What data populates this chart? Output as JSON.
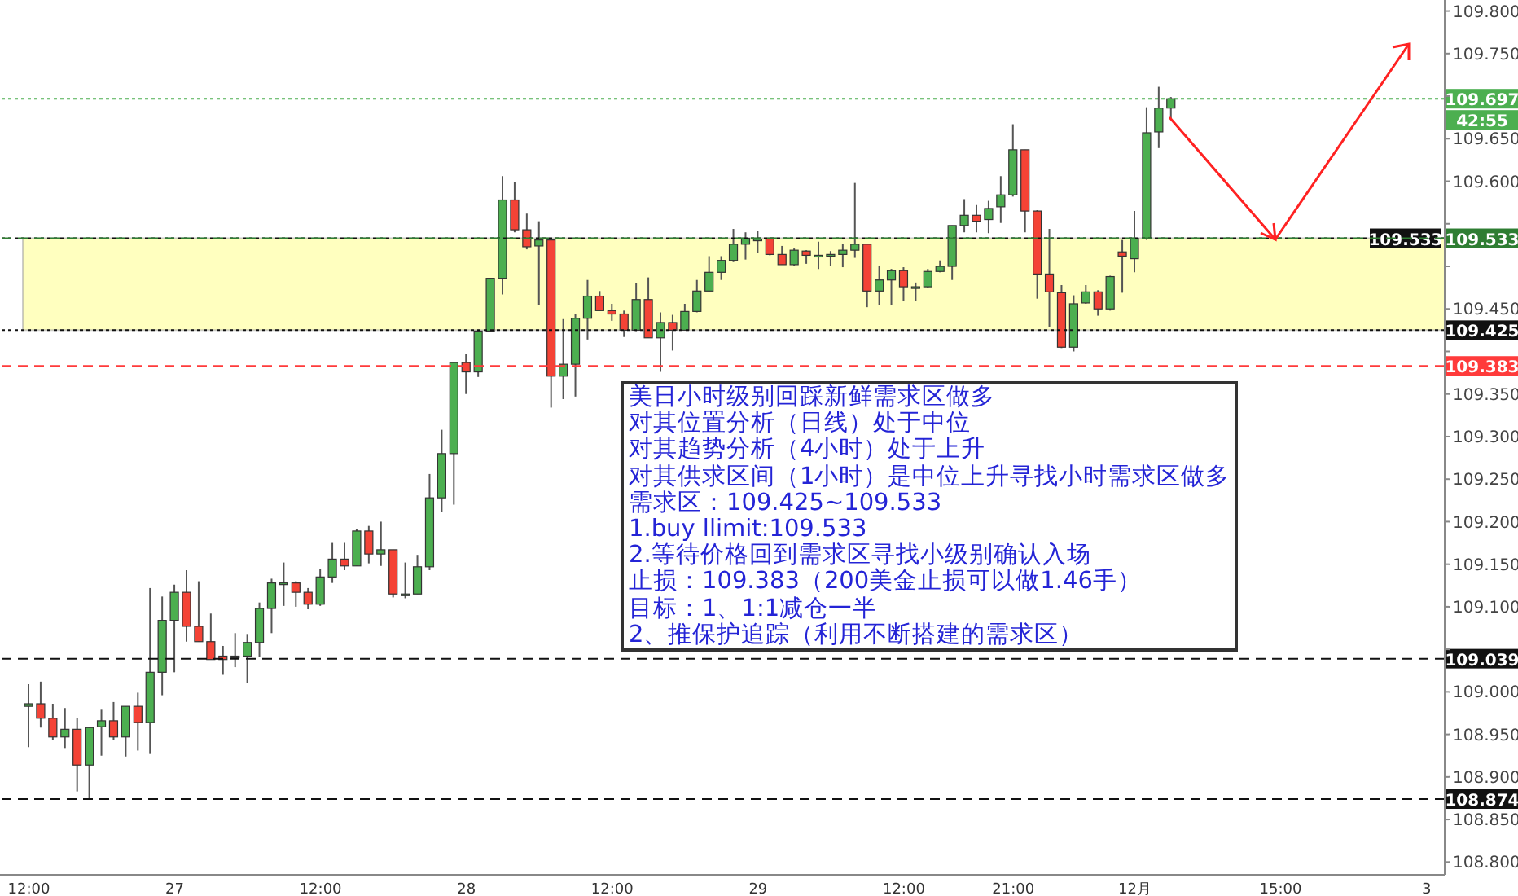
{
  "chart_data": {
    "type": "candlestick",
    "categories": [
      "12:00",
      null,
      null,
      null,
      null,
      null,
      null,
      null,
      null,
      null,
      null,
      null,
      "27",
      null,
      null,
      null,
      null,
      null,
      null,
      null,
      null,
      null,
      null,
      null,
      "12:00",
      null,
      null,
      null,
      null,
      null,
      null,
      null,
      null,
      null,
      null,
      null,
      "28",
      null,
      null,
      null,
      null,
      null,
      null,
      null,
      null,
      null,
      null,
      null,
      "12:00",
      null,
      null,
      null,
      null,
      null,
      null,
      null,
      null,
      null,
      null,
      null,
      "29",
      null,
      null,
      null,
      null,
      null,
      null,
      null,
      null,
      null,
      null,
      null,
      "12:00",
      null,
      null,
      null,
      null,
      null,
      null,
      null,
      null,
      "21:00",
      null,
      null,
      null,
      null,
      null,
      null,
      null,
      null,
      null,
      "12月",
      null,
      null,
      null,
      null,
      null,
      null,
      null,
      null,
      null,
      null,
      null,
      "15:00",
      null,
      null,
      null,
      null,
      null,
      null,
      null,
      null,
      null,
      null,
      null,
      "3",
      null
    ],
    "ohlc": [
      [
        108.983,
        109.009,
        108.935,
        108.986
      ],
      [
        108.986,
        109.012,
        108.958,
        108.969
      ],
      [
        108.969,
        108.986,
        108.943,
        108.947
      ],
      [
        108.947,
        108.981,
        108.934,
        108.956
      ],
      [
        108.956,
        108.969,
        108.883,
        108.914
      ],
      [
        108.914,
        108.958,
        108.875,
        108.958
      ],
      [
        108.959,
        108.979,
        108.925,
        108.966
      ],
      [
        108.966,
        108.988,
        108.943,
        108.947
      ],
      [
        108.947,
        108.983,
        108.924,
        108.983
      ],
      [
        108.983,
        108.999,
        108.931,
        108.964
      ],
      [
        108.964,
        109.122,
        108.927,
        109.023
      ],
      [
        109.023,
        109.112,
        108.996,
        109.084
      ],
      [
        109.084,
        109.126,
        109.023,
        109.117
      ],
      [
        109.117,
        109.143,
        109.059,
        109.077
      ],
      [
        109.077,
        109.13,
        109.059,
        109.059
      ],
      [
        109.059,
        109.092,
        109.038,
        109.038
      ],
      [
        109.042,
        109.054,
        109.02,
        109.038
      ],
      [
        109.042,
        109.069,
        109.029,
        109.042
      ],
      [
        109.042,
        109.068,
        109.01,
        109.058
      ],
      [
        109.058,
        109.105,
        109.041,
        109.098
      ],
      [
        109.098,
        109.133,
        109.069,
        109.128
      ],
      [
        109.128,
        109.152,
        109.101,
        109.128
      ],
      [
        109.128,
        109.13,
        109.1,
        109.117
      ],
      [
        109.117,
        109.122,
        109.097,
        109.103
      ],
      [
        109.103,
        109.144,
        109.101,
        109.135
      ],
      [
        109.135,
        109.175,
        109.128,
        109.156
      ],
      [
        109.156,
        109.175,
        109.143,
        109.148
      ],
      [
        109.148,
        109.191,
        109.148,
        109.189
      ],
      [
        109.189,
        109.195,
        109.151,
        109.162
      ],
      [
        109.162,
        109.2,
        109.148,
        109.167
      ],
      [
        109.167,
        109.167,
        109.111,
        109.115
      ],
      [
        109.115,
        109.152,
        109.11,
        109.115
      ],
      [
        109.115,
        109.161,
        109.115,
        109.147
      ],
      [
        109.147,
        109.256,
        109.143,
        109.228
      ],
      [
        109.228,
        109.308,
        109.211,
        109.28
      ],
      [
        109.28,
        109.387,
        109.22,
        109.387
      ],
      [
        109.387,
        109.397,
        109.35,
        109.376
      ],
      [
        109.376,
        109.424,
        109.37,
        109.424
      ],
      [
        109.424,
        109.486,
        109.424,
        109.486
      ],
      [
        109.486,
        109.606,
        109.467,
        109.578
      ],
      [
        109.578,
        109.599,
        109.54,
        109.543
      ],
      [
        109.543,
        109.562,
        109.52,
        109.523
      ],
      [
        109.524,
        109.553,
        109.455,
        109.531
      ],
      [
        109.531,
        109.531,
        109.334,
        109.371
      ],
      [
        109.371,
        109.438,
        109.344,
        109.385
      ],
      [
        109.385,
        109.444,
        109.347,
        109.439
      ],
      [
        109.439,
        109.484,
        109.414,
        109.465
      ],
      [
        109.465,
        109.471,
        109.448,
        109.448
      ],
      [
        109.448,
        109.456,
        109.436,
        109.444
      ],
      [
        109.444,
        109.448,
        109.417,
        109.425
      ],
      [
        109.425,
        109.48,
        109.424,
        109.461
      ],
      [
        109.461,
        109.487,
        109.416,
        109.416
      ],
      [
        109.416,
        109.446,
        109.376,
        109.434
      ],
      [
        109.434,
        109.443,
        109.401,
        109.425
      ],
      [
        109.425,
        109.456,
        109.425,
        109.447
      ],
      [
        109.447,
        109.484,
        109.446,
        109.471
      ],
      [
        109.471,
        109.512,
        109.471,
        109.493
      ],
      [
        109.493,
        109.512,
        109.484,
        109.507
      ],
      [
        109.507,
        109.544,
        109.505,
        109.526
      ],
      [
        109.526,
        109.54,
        109.508,
        109.533
      ],
      [
        109.532,
        109.542,
        109.516,
        109.532
      ],
      [
        109.533,
        109.533,
        109.513,
        109.514
      ],
      [
        109.514,
        109.524,
        109.502,
        109.502
      ],
      [
        109.502,
        109.521,
        109.501,
        109.519
      ],
      [
        109.518,
        109.519,
        109.503,
        109.513
      ],
      [
        109.513,
        109.529,
        109.497,
        109.513
      ],
      [
        109.512,
        109.518,
        109.5,
        109.514
      ],
      [
        109.514,
        109.526,
        109.499,
        109.519
      ],
      [
        109.519,
        109.598,
        109.51,
        109.526
      ],
      [
        109.526,
        109.526,
        109.452,
        109.471
      ],
      [
        109.471,
        109.501,
        109.455,
        109.484
      ],
      [
        109.484,
        109.497,
        109.455,
        109.495
      ],
      [
        109.495,
        109.499,
        109.459,
        109.476
      ],
      [
        109.476,
        109.481,
        109.459,
        109.476
      ],
      [
        109.476,
        109.497,
        109.475,
        109.494
      ],
      [
        109.494,
        109.507,
        109.493,
        109.5
      ],
      [
        109.5,
        109.548,
        109.484,
        109.548
      ],
      [
        109.548,
        109.579,
        109.54,
        109.56
      ],
      [
        109.56,
        109.572,
        109.54,
        109.553
      ],
      [
        109.555,
        109.577,
        109.539,
        109.568
      ],
      [
        109.57,
        109.606,
        109.551,
        109.584
      ],
      [
        109.584,
        109.667,
        109.582,
        109.637
      ],
      [
        109.637,
        109.637,
        109.54,
        109.565
      ],
      [
        109.565,
        109.566,
        109.462,
        109.491
      ],
      [
        109.491,
        109.544,
        109.429,
        109.47
      ],
      [
        109.469,
        109.478,
        109.404,
        109.405
      ],
      [
        109.405,
        109.466,
        109.4,
        109.456
      ],
      [
        109.457,
        109.478,
        109.456,
        109.47
      ],
      [
        109.47,
        109.472,
        109.442,
        109.45
      ],
      [
        109.45,
        109.489,
        109.448,
        109.488
      ],
      [
        109.517,
        109.531,
        109.469,
        109.512
      ],
      [
        109.509,
        109.565,
        109.493,
        109.533
      ],
      [
        109.533,
        109.687,
        109.531,
        109.657
      ],
      [
        109.658,
        109.711,
        109.639,
        109.686
      ],
      [
        109.686,
        109.699,
        109.674,
        109.697
      ],
      null,
      null,
      null,
      null,
      null,
      null,
      null,
      null,
      null,
      null,
      null,
      null,
      null,
      null,
      null,
      null,
      null,
      null,
      null,
      null,
      null,
      null
    ],
    "ylim": [
      108.785,
      109.813
    ],
    "yticks": [
      {
        "value": 108.8,
        "label": "108.800"
      },
      {
        "value": 108.85,
        "label": "108.850"
      },
      {
        "value": 108.9,
        "label": "108.900"
      },
      {
        "value": 108.95,
        "label": "108.950"
      },
      {
        "value": 109.0,
        "label": "109.000"
      },
      {
        "value": 109.05,
        "label": null
      },
      {
        "value": 109.1,
        "label": "109.100"
      },
      {
        "value": 109.15,
        "label": "109.150"
      },
      {
        "value": 109.2,
        "label": "109.200"
      },
      {
        "value": 109.25,
        "label": "109.250"
      },
      {
        "value": 109.3,
        "label": "109.300"
      },
      {
        "value": 109.35,
        "label": "109.350"
      },
      {
        "value": 109.4,
        "label": null
      },
      {
        "value": 109.45,
        "label": "109.450"
      },
      {
        "value": 109.5,
        "label": null
      },
      {
        "value": 109.55,
        "label": null
      },
      {
        "value": 109.6,
        "label": "109.600"
      },
      {
        "value": 109.65,
        "label": "109.650"
      },
      {
        "value": 109.7,
        "label": null
      },
      {
        "value": 109.75,
        "label": "109.750"
      },
      {
        "value": 109.8,
        "label": "109.800"
      }
    ],
    "ref_lines": [
      {
        "axis": "y",
        "value": 109.697,
        "label": "109.697",
        "color": "#4caf50",
        "line_style": "dotted"
      },
      {
        "axis": "y",
        "value": 109.533,
        "label": "109.533",
        "color": "#2e7d32",
        "line_style": "dashed"
      },
      {
        "axis": "y",
        "value": 109.533,
        "label": "109.533",
        "color": "#111111",
        "line_style": "dotted"
      },
      {
        "axis": "y",
        "value": 109.425,
        "label": "109.425",
        "color": "#111111",
        "line_style": "dotted"
      },
      {
        "axis": "y",
        "value": 109.383,
        "label": "109.383",
        "color": "#ff3b3b",
        "line_style": "dashed"
      },
      {
        "axis": "y",
        "value": 109.039,
        "label": "109.039",
        "color": "#111111",
        "line_style": "dashed"
      },
      {
        "axis": "y",
        "value": 108.874,
        "label": "108.874",
        "color": "#111111",
        "line_style": "dashed"
      }
    ],
    "bands": [
      {
        "axis": "y",
        "from": 109.425,
        "to": 109.533,
        "color": "#ffff80"
      }
    ],
    "annotations": [
      "42:55",
      "美日小时级别回踩新鲜需求区做多",
      "对其位置分析（日线）处于中位",
      "对其趋势分析（4小时）处于上升",
      "对其供求区间（1小时）是中位上升寻找小时需求区做多",
      "需求区：109.425~109.533",
      "1.buy llimit:109.533",
      "2.等待价格回到需求区寻找小级别确认入场",
      "止损：109.383（200美金止损可以做1.46手）",
      "目标：1、1:1减仓一半",
      "2、推保护追踪（利用不断搭建的需求区）"
    ]
  }
}
